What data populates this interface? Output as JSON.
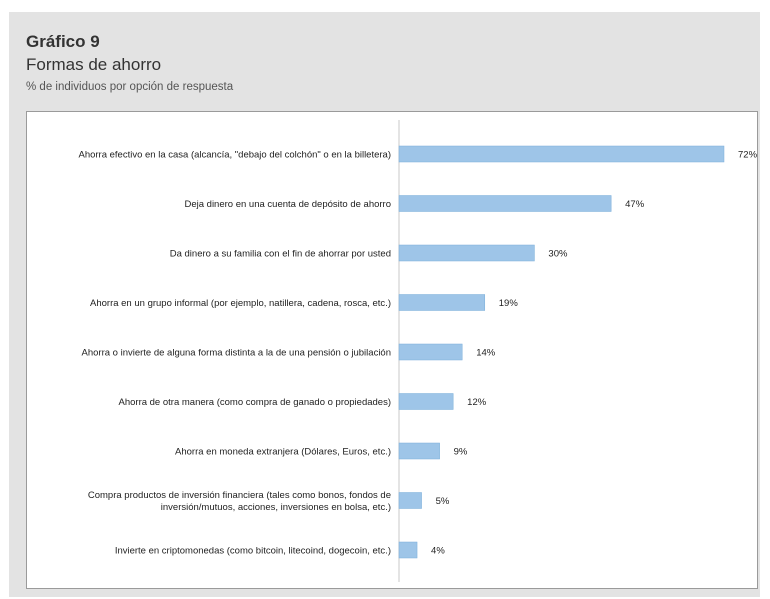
{
  "header": {
    "title": "Gráfico 9",
    "subtitle": "Formas de ahorro",
    "note": "% de individuos por opción de respuesta"
  },
  "colors": {
    "bar": "#9ec5e8",
    "bar_edge": "#7aaed9",
    "axis": "#c8c8c8",
    "panel": "#e3e3e3"
  },
  "chart_data": {
    "type": "bar",
    "orientation": "horizontal",
    "title": "Gráfico 9",
    "subtitle": "Formas de ahorro",
    "xlabel": "",
    "ylabel": "",
    "xlim": [
      0,
      72
    ],
    "grid": false,
    "legend": "none",
    "categories": [
      [
        "Ahorra efectivo en la casa (alcancía, \"debajo del colchón\" o en la billetera)"
      ],
      [
        "Deja dinero en una cuenta de depósito de ahorro"
      ],
      [
        "Da dinero a su familia con el fin de ahorrar por usted"
      ],
      [
        "Ahorra en un grupo informal (por ejemplo, natillera, cadena, rosca, etc.)"
      ],
      [
        "Ahorra o invierte de alguna forma distinta a la de una pensión o jubilación"
      ],
      [
        "Ahorra de otra manera (como compra de ganado o propiedades)"
      ],
      [
        "Ahorra en moneda extranjera (Dólares, Euros, etc.)"
      ],
      [
        "Compra productos de inversión financiera (tales como bonos, fondos de",
        "inversión/mutuos, acciones, inversiones en bolsa, etc.)"
      ],
      [
        "Invierte en criptomonedas (como bitcoin, litecoind, dogecoin, etc.)"
      ]
    ],
    "values": [
      72,
      47,
      30,
      19,
      14,
      12,
      9,
      5,
      4
    ],
    "value_labels": [
      "72%",
      "47%",
      "30%",
      "19%",
      "14%",
      "12%",
      "9%",
      "5%",
      "4%"
    ]
  }
}
